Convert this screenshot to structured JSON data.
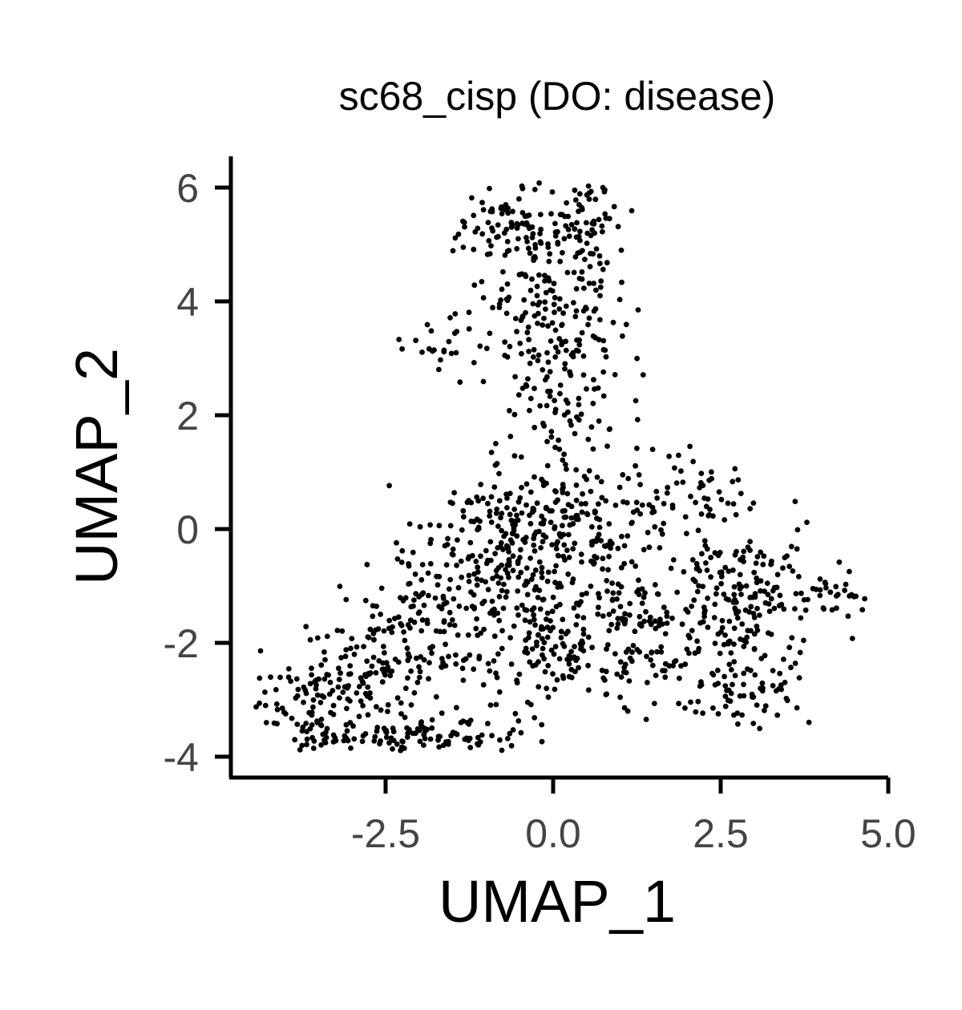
{
  "chart_data": {
    "type": "scatter",
    "title": "sc68_cisp (DO: disease)",
    "xlabel": "UMAP_1",
    "ylabel": "UMAP_2",
    "xlim": [
      -4.8,
      5.0
    ],
    "ylim": [
      -4.35,
      6.6
    ],
    "x_ticks": [
      -2.5,
      0.0,
      2.5,
      5.0
    ],
    "x_tick_labels": [
      "-2.5",
      "0.0",
      "2.5",
      "5.0"
    ],
    "y_ticks": [
      -4,
      -2,
      0,
      2,
      4,
      6
    ],
    "y_tick_labels": [
      "-4",
      "-2",
      "0",
      "2",
      "4",
      "6"
    ],
    "grid": false,
    "legend": "none",
    "point_color": "#000000",
    "clusters": [
      {
        "cx": -0.6,
        "cy": 5.3,
        "sx": 0.38,
        "sy": 0.38,
        "n": 95
      },
      {
        "cx": 0.45,
        "cy": 5.45,
        "sx": 0.28,
        "sy": 0.38,
        "n": 70
      },
      {
        "cx": 0.0,
        "cy": 3.8,
        "sx": 0.55,
        "sy": 0.6,
        "n": 140
      },
      {
        "cx": 0.15,
        "cy": 2.3,
        "sx": 0.45,
        "sy": 0.55,
        "n": 80
      },
      {
        "cx": -1.6,
        "cy": 3.2,
        "sx": 0.35,
        "sy": 0.35,
        "n": 25
      },
      {
        "cx": 0.0,
        "cy": 0.1,
        "sx": 0.85,
        "sy": 0.55,
        "n": 230
      },
      {
        "cx": -1.1,
        "cy": -1.1,
        "sx": 0.8,
        "sy": 0.8,
        "n": 230
      },
      {
        "cx": 0.2,
        "cy": -1.8,
        "sx": 0.7,
        "sy": 0.7,
        "n": 160
      },
      {
        "cx": -3.3,
        "cy": -3.0,
        "sx": 0.6,
        "sy": 0.45,
        "n": 140
      },
      {
        "cx": -2.3,
        "cy": -2.1,
        "sx": 0.45,
        "sy": 0.55,
        "n": 80
      },
      {
        "cx": -2.0,
        "cy": -3.65,
        "sx": 0.9,
        "sy": 0.18,
        "n": 110
      },
      {
        "cx": 1.5,
        "cy": -1.7,
        "sx": 0.5,
        "sy": 0.7,
        "n": 90
      },
      {
        "cx": 2.8,
        "cy": -1.2,
        "sx": 0.6,
        "sy": 0.7,
        "n": 180
      },
      {
        "cx": 2.8,
        "cy": -2.9,
        "sx": 0.45,
        "sy": 0.3,
        "n": 60
      },
      {
        "cx": 4.3,
        "cy": -1.2,
        "sx": 0.25,
        "sy": 0.15,
        "n": 25
      },
      {
        "cx": 2.1,
        "cy": 0.5,
        "sx": 0.55,
        "sy": 0.35,
        "n": 45
      }
    ]
  }
}
